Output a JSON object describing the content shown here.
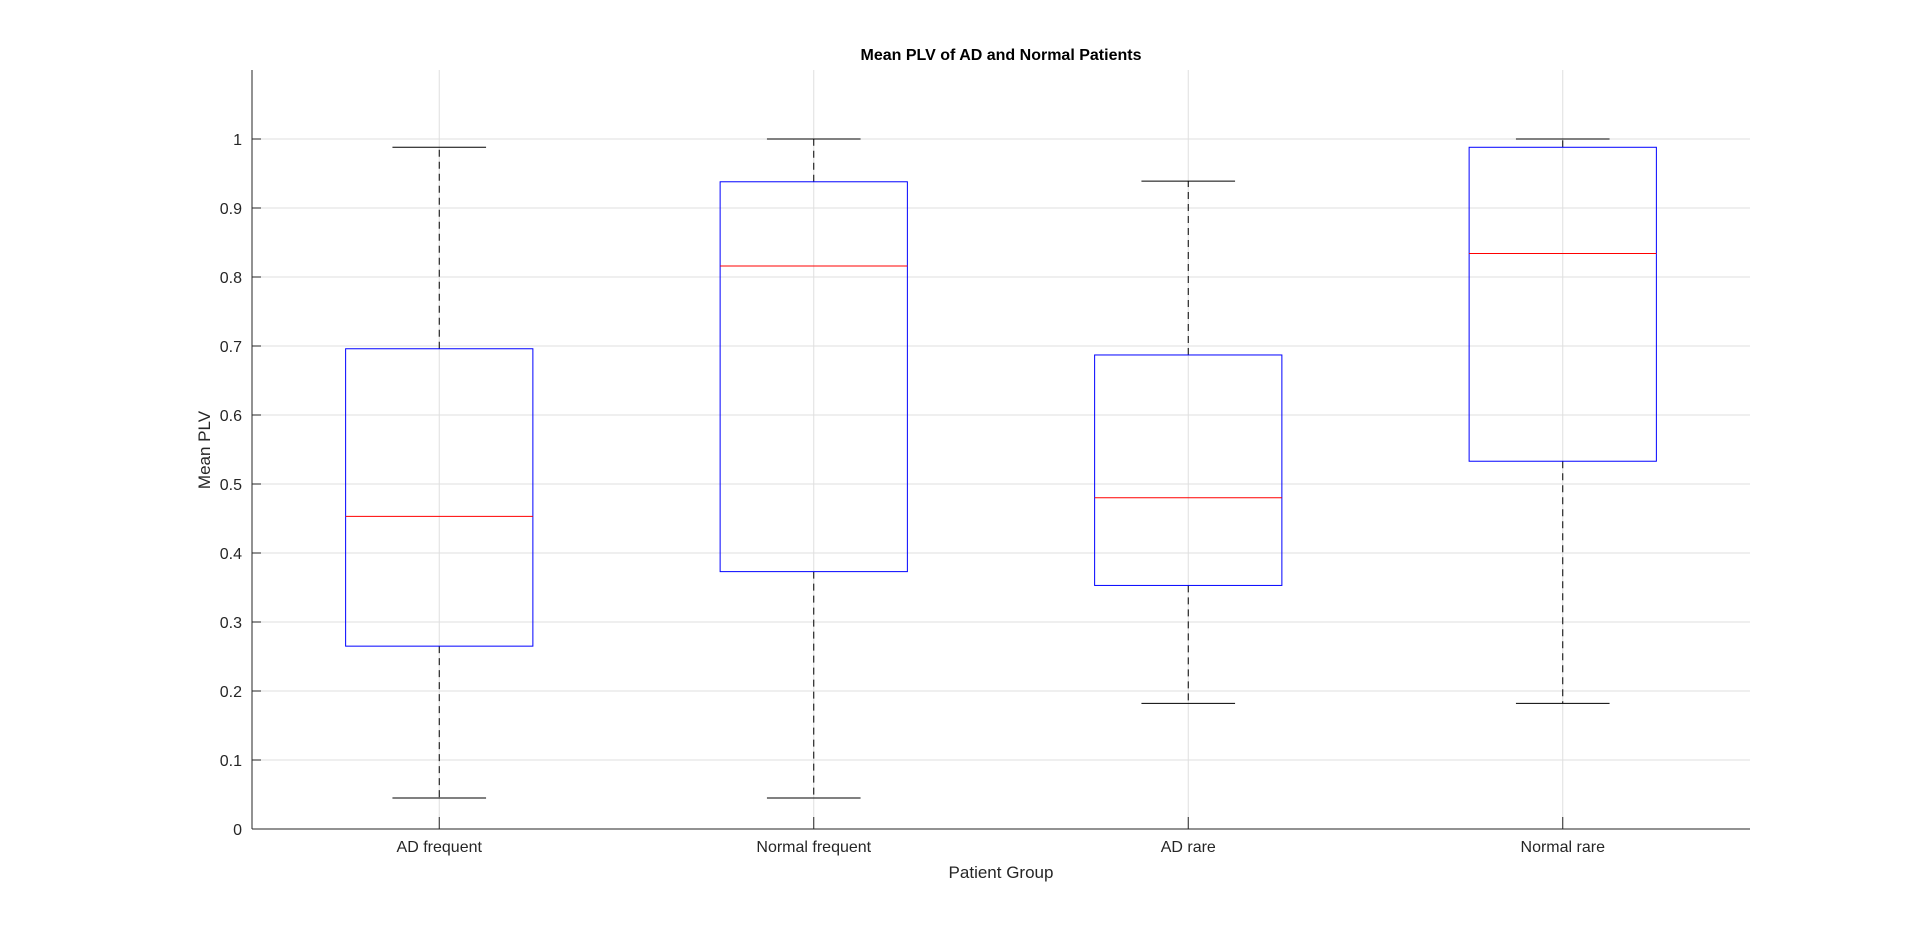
{
  "chart_data": {
    "type": "boxplot",
    "title": "Mean PLV of AD and Normal Patients",
    "xlabel": "Patient Group",
    "ylabel": "Mean PLV",
    "categories": [
      "AD frequent",
      "Normal frequent",
      "AD rare",
      "Normal rare"
    ],
    "boxes": [
      {
        "whisker_low": 0.045,
        "q1": 0.265,
        "median": 0.453,
        "q3": 0.696,
        "whisker_high": 0.988
      },
      {
        "whisker_low": 0.045,
        "q1": 0.373,
        "median": 0.816,
        "q3": 0.938,
        "whisker_high": 1.0
      },
      {
        "whisker_low": 0.182,
        "q1": 0.353,
        "median": 0.48,
        "q3": 0.687,
        "whisker_high": 0.939
      },
      {
        "whisker_low": 0.182,
        "q1": 0.533,
        "median": 0.834,
        "q3": 0.988,
        "whisker_high": 1.0
      }
    ],
    "ylim": [
      0,
      1.1
    ],
    "yticks": [
      "0",
      "0.1",
      "0.2",
      "0.3",
      "0.4",
      "0.5",
      "0.6",
      "0.7",
      "0.8",
      "0.9",
      "1"
    ],
    "grid": true,
    "colors": {
      "box": "#0000ff",
      "median": "#ff0000",
      "whisker": "#000000",
      "grid": "#dfdfdf",
      "axis": "#262626"
    }
  }
}
